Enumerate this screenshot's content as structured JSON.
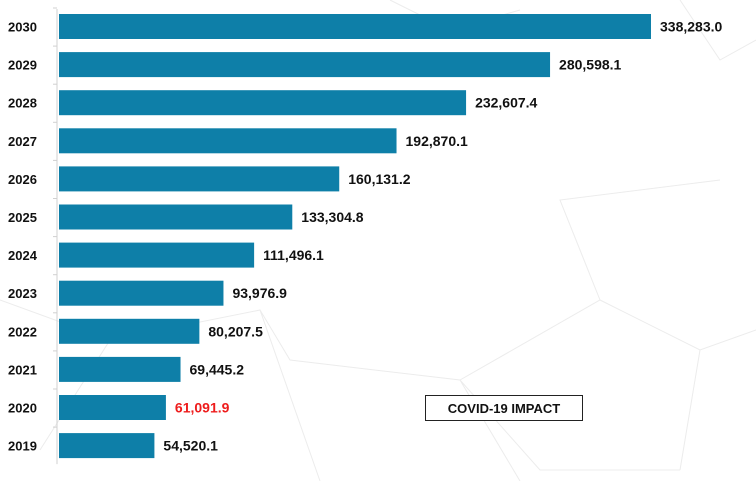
{
  "chart_data": {
    "type": "bar",
    "orientation": "horizontal",
    "categories": [
      "2030",
      "2029",
      "2028",
      "2027",
      "2026",
      "2025",
      "2024",
      "2023",
      "2022",
      "2021",
      "2020",
      "2019"
    ],
    "values": [
      338283.0,
      280598.1,
      232607.4,
      192870.1,
      160131.2,
      133304.8,
      111496.1,
      93976.9,
      80207.5,
      69445.2,
      61091.9,
      54520.1
    ],
    "labels": [
      "338,283.0",
      "280,598.1",
      "232,607.4",
      "192,870.1",
      "160,131.2",
      "133,304.8",
      "111,496.1",
      "93,976.9",
      "80,207.5",
      "69,445.2",
      "61,091.9",
      "54,520.1"
    ],
    "highlight_category": "2020",
    "bar_color": "#0e7fa8",
    "label_color": "#111111",
    "highlight_label_color": "#ee1c1c",
    "annotation": "COVID-19 IMPACT",
    "grid": false,
    "title": "",
    "xlabel": "",
    "ylabel": ""
  }
}
